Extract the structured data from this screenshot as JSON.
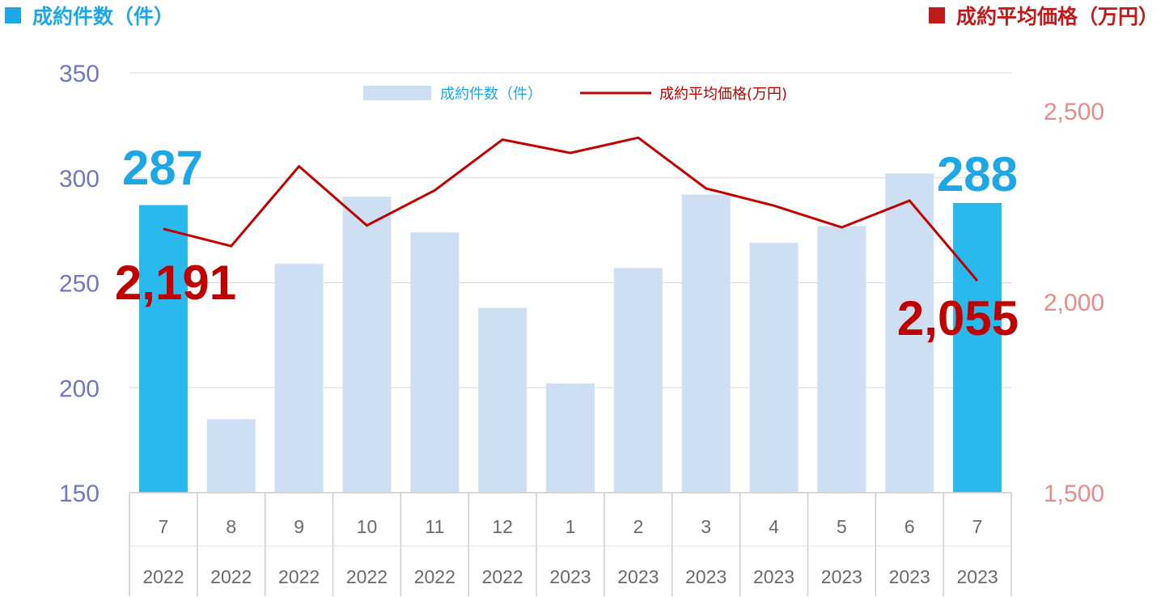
{
  "header": {
    "left_title": "成約件数（件）",
    "right_title": "成約平均価格（万円）"
  },
  "colors": {
    "bar_highlight": "#29b9ed",
    "bar_normal": "#cfdff3",
    "line": "#c00000",
    "left_axis_text": "#7077c8",
    "right_axis_text": "#ea8a8a",
    "callout_count": "#1ea7e6",
    "callout_price": "#c00000"
  },
  "chart_data": {
    "type": "bar",
    "categories": [
      "7",
      "8",
      "9",
      "10",
      "11",
      "12",
      "1",
      "2",
      "3",
      "4",
      "5",
      "6",
      "7"
    ],
    "years": [
      "2022",
      "2022",
      "2022",
      "2022",
      "2022",
      "2022",
      "2023",
      "2023",
      "2023",
      "2023",
      "2023",
      "2023",
      "2023"
    ],
    "series": [
      {
        "name": "成約件数（件）",
        "type": "bar",
        "axis": "left",
        "values": [
          287,
          185,
          259,
          291,
          274,
          238,
          202,
          257,
          292,
          269,
          277,
          302,
          288
        ],
        "highlighted": [
          0,
          12
        ]
      },
      {
        "name": "成約平均価格(万円)",
        "type": "line",
        "axis": "right",
        "values": [
          2191,
          2146,
          2355,
          2200,
          2292,
          2425,
          2390,
          2430,
          2297,
          2252,
          2195,
          2265,
          2055
        ]
      }
    ],
    "y_left": {
      "min": 150,
      "max": 350,
      "ticks": [
        "150",
        "200",
        "250",
        "300",
        "350"
      ]
    },
    "y_right": {
      "min": 1500,
      "max": 2600,
      "ticks": [
        "1,500",
        "2,000",
        "2,500"
      ]
    },
    "annotations": {
      "first_count": "287",
      "last_count": "288",
      "first_price": "2,191",
      "last_price": "2,055"
    },
    "grid": true,
    "legend": "top-center"
  }
}
